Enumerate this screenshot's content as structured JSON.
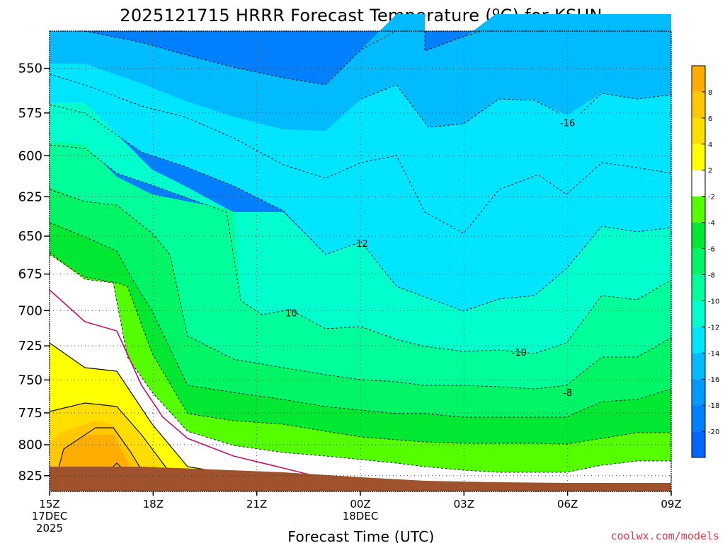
{
  "chart_data": {
    "type": "heatmap",
    "title": "2025121715 HRRR Forecast Temperature (ºC) for KSUN",
    "xlabel": "Forecast Time (UTC)",
    "ylabel": "",
    "credit": "coolwx.com/models",
    "y_ticks": [
      "550",
      "575",
      "600",
      "625",
      "650",
      "675",
      "700",
      "725",
      "750",
      "775",
      "800",
      "825"
    ],
    "y_tick_values": [
      550,
      575,
      600,
      625,
      650,
      675,
      700,
      725,
      750,
      775,
      800,
      825
    ],
    "x_ticks": [
      {
        "hour": 15,
        "label": "15Z",
        "date": "17DEC",
        "year": "2025"
      },
      {
        "hour": 18,
        "label": "18Z"
      },
      {
        "hour": 21,
        "label": "21Z"
      },
      {
        "hour": 24,
        "label": "00Z",
        "date": "18DEC"
      },
      {
        "hour": 27,
        "label": "03Z"
      },
      {
        "hour": 30,
        "label": "06Z"
      },
      {
        "hour": 33,
        "label": "09Z"
      }
    ],
    "xlim": [
      15,
      33
    ],
    "ylim": [
      530,
      838
    ],
    "ylog": true,
    "grid": true,
    "colorbar": {
      "bins": [
        {
          "lo": -22,
          "hi": -20,
          "color": "#0066ff"
        },
        {
          "lo": -20,
          "hi": -18,
          "color": "#0080ff"
        },
        {
          "lo": -18,
          "hi": -16,
          "color": "#0099ff"
        },
        {
          "lo": -16,
          "hi": -14,
          "color": "#00bbff"
        },
        {
          "lo": -14,
          "hi": -12,
          "color": "#00e5ff"
        },
        {
          "lo": -12,
          "hi": -10,
          "color": "#00ffcc"
        },
        {
          "lo": -10,
          "hi": -8,
          "color": "#00ff99"
        },
        {
          "lo": -8,
          "hi": -6,
          "color": "#00f566"
        },
        {
          "lo": -6,
          "hi": -4,
          "color": "#00e832"
        },
        {
          "lo": -4,
          "hi": -2,
          "color": "#55ff00"
        },
        {
          "lo": -2,
          "hi": 2,
          "color": "#ffffff"
        },
        {
          "lo": 2,
          "hi": 4,
          "color": "#ffff00"
        },
        {
          "lo": 4,
          "hi": 6,
          "color": "#ffde00"
        },
        {
          "lo": 6,
          "hi": 8,
          "color": "#ffc800"
        },
        {
          "lo": 8,
          "hi": 10,
          "color": "#ffad00"
        }
      ],
      "labels": [
        "-20",
        "-18",
        "-16",
        "-14",
        "-12",
        "-10",
        "-8",
        "-6",
        "-4",
        "-2",
        "2",
        "4",
        "6",
        "8"
      ]
    },
    "contour_labels": [
      {
        "text": "-16",
        "hour": 30.0,
        "p": 581
      },
      {
        "text": "-12",
        "hour": 24.0,
        "p": 655
      },
      {
        "text": "10",
        "hour": 22.0,
        "p": 702
      },
      {
        "text": "-10",
        "hour": 28.6,
        "p": 730
      },
      {
        "text": "-8",
        "hour": 30.0,
        "p": 760
      }
    ],
    "terrain_color": "#a0522d"
  }
}
